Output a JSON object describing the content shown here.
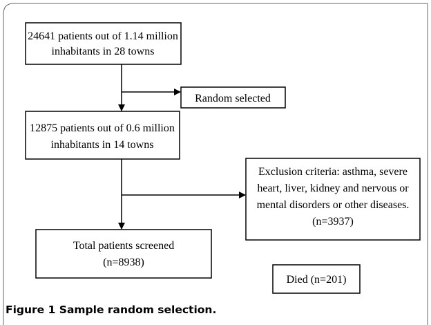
{
  "nodes": [
    {
      "lines": [
        "24641 patients out of 1.14 million",
        "inhabitants in 28 towns"
      ]
    },
    {
      "lines": [
        "Random selected"
      ]
    },
    {
      "lines": [
        "12875 patients out of 0.6 million",
        "inhabitants in 14 towns"
      ]
    },
    {
      "lines": [
        "Exclusion criteria: asthma, severe",
        "heart, liver, kidney and nervous or",
        "mental disorders or other diseases.",
        "(n=3937)"
      ]
    },
    {
      "lines": [
        "Total patients screened",
        "(n=8938)"
      ]
    },
    {
      "lines": [
        "Died (n=201)"
      ]
    }
  ],
  "caption": {
    "label": "Figure 1",
    "text": "Sample random selection."
  }
}
